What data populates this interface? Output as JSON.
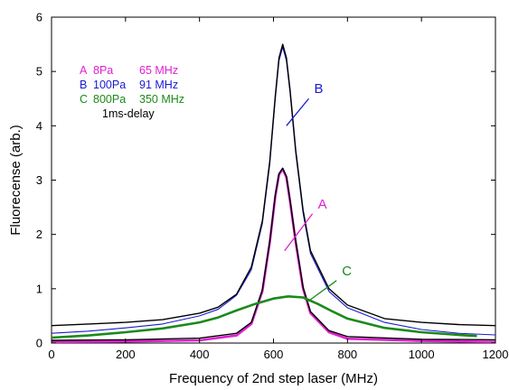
{
  "chart_data": {
    "type": "line",
    "title": "",
    "xlabel": "Frequency of 2nd step laser (MHz)",
    "ylabel": "Fluorecense (arb.)",
    "xlim": [
      0,
      1200
    ],
    "ylim": [
      0,
      6
    ],
    "xticks": [
      0,
      200,
      400,
      600,
      800,
      1000,
      1200
    ],
    "yticks": [
      0,
      1,
      2,
      3,
      4,
      5,
      6
    ],
    "grid": false,
    "legend": {
      "placement": "top-left",
      "entries": [
        {
          "label": "A",
          "pressure": "8Pa",
          "width": "65 MHz",
          "color": "#e020d0"
        },
        {
          "label": "B",
          "pressure": "100Pa",
          "width": "91 MHz",
          "color": "#1a1ad0"
        },
        {
          "label": "C",
          "pressure": "800Pa",
          "width": "350 MHz",
          "color": "#1a8a1a"
        }
      ],
      "note": "1ms-delay"
    },
    "series": [
      {
        "label": "B",
        "color": "#1a1ad0",
        "x": [
          0,
          100,
          200,
          300,
          400,
          450,
          500,
          540,
          570,
          590,
          605,
          615,
          625,
          635,
          645,
          660,
          680,
          700,
          750,
          800,
          900,
          1000,
          1100,
          1200
        ],
        "y": [
          0.18,
          0.22,
          0.28,
          0.35,
          0.5,
          0.62,
          0.88,
          1.35,
          2.2,
          3.3,
          4.5,
          5.2,
          5.45,
          5.2,
          4.6,
          3.5,
          2.4,
          1.65,
          0.95,
          0.65,
          0.38,
          0.25,
          0.18,
          0.15
        ]
      },
      {
        "label": "fit-B",
        "color": "#000000",
        "x": [
          0,
          100,
          200,
          300,
          400,
          450,
          500,
          540,
          570,
          590,
          605,
          615,
          625,
          635,
          645,
          660,
          680,
          700,
          750,
          800,
          900,
          1000,
          1100,
          1200
        ],
        "y": [
          0.32,
          0.35,
          0.38,
          0.43,
          0.55,
          0.66,
          0.9,
          1.4,
          2.25,
          3.35,
          4.55,
          5.25,
          5.5,
          5.25,
          4.65,
          3.55,
          2.45,
          1.7,
          1.0,
          0.7,
          0.45,
          0.38,
          0.34,
          0.32
        ]
      },
      {
        "label": "A",
        "color": "#e020d0",
        "x": [
          0,
          200,
          400,
          500,
          540,
          570,
          590,
          605,
          615,
          625,
          635,
          645,
          660,
          680,
          700,
          750,
          800,
          1000,
          1200
        ],
        "y": [
          0.02,
          0.03,
          0.05,
          0.14,
          0.35,
          0.95,
          1.85,
          2.7,
          3.1,
          3.2,
          3.05,
          2.6,
          1.85,
          1.0,
          0.55,
          0.2,
          0.08,
          0.04,
          0.02
        ]
      },
      {
        "label": "fit-A",
        "color": "#000000",
        "x": [
          0,
          200,
          400,
          500,
          540,
          570,
          590,
          605,
          615,
          625,
          635,
          645,
          660,
          680,
          700,
          750,
          800,
          1000,
          1200
        ],
        "y": [
          0.05,
          0.06,
          0.09,
          0.18,
          0.38,
          0.98,
          1.88,
          2.72,
          3.12,
          3.22,
          3.07,
          2.62,
          1.88,
          1.03,
          0.58,
          0.23,
          0.12,
          0.07,
          0.06
        ]
      },
      {
        "label": "C",
        "color": "#1a8a1a",
        "x": [
          0,
          100,
          200,
          300,
          400,
          450,
          500,
          550,
          600,
          640,
          680,
          720,
          760,
          800,
          900,
          1000,
          1100,
          1150
        ],
        "y": [
          0.1,
          0.14,
          0.2,
          0.27,
          0.38,
          0.47,
          0.6,
          0.72,
          0.82,
          0.86,
          0.84,
          0.72,
          0.58,
          0.45,
          0.28,
          0.2,
          0.15,
          0.13
        ]
      }
    ],
    "annotations": [
      {
        "text": "B",
        "color": "#1a1ad0",
        "at": [
          635,
          4.0
        ],
        "pointer_end": [
          635,
          3.95
        ],
        "label_at": [
          710,
          4.6
        ]
      },
      {
        "text": "A",
        "color": "#e020d0",
        "at": [
          630,
          1.7
        ],
        "pointer_end": [
          630,
          1.65
        ],
        "label_at": [
          720,
          2.48
        ]
      },
      {
        "text": "C",
        "color": "#1a8a1a",
        "at": [
          690,
          0.75
        ],
        "pointer_end": [
          690,
          0.72
        ],
        "label_at": [
          785,
          1.25
        ]
      }
    ]
  }
}
